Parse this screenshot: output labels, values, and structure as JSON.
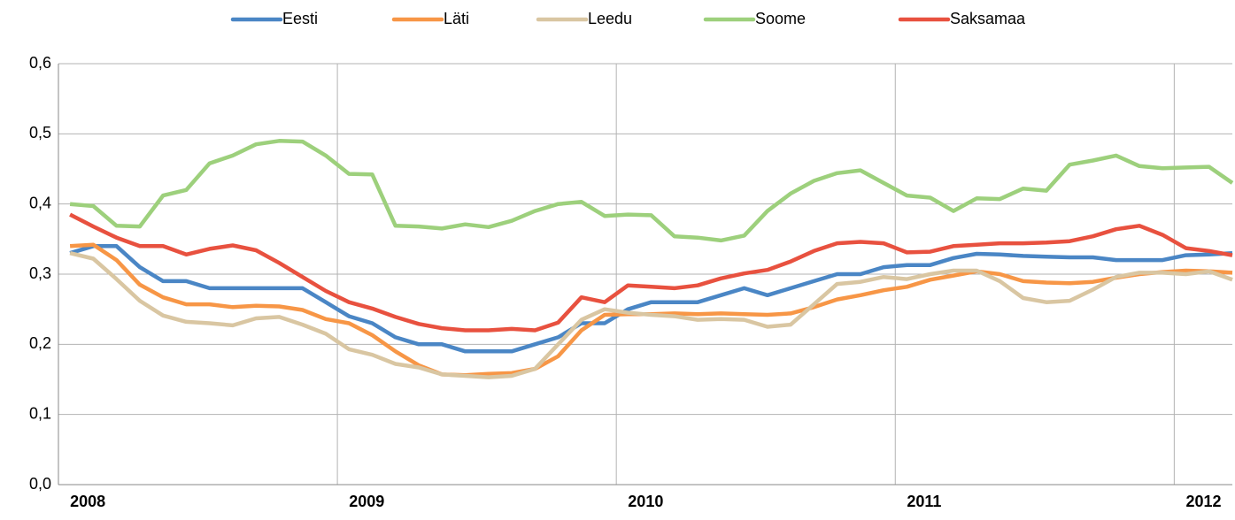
{
  "chart_data": {
    "type": "line",
    "categories": [
      "2008",
      null,
      null,
      null,
      null,
      null,
      null,
      null,
      null,
      null,
      null,
      null,
      "2009",
      null,
      null,
      null,
      null,
      null,
      null,
      null,
      null,
      null,
      null,
      null,
      "2010",
      null,
      null,
      null,
      null,
      null,
      null,
      null,
      null,
      null,
      null,
      null,
      "2011",
      null,
      null,
      null,
      null,
      null,
      null,
      null,
      null,
      null,
      null,
      null,
      "2012",
      null,
      null
    ],
    "series": [
      {
        "name": "Eesti",
        "color": "#4a86c5",
        "values": [
          0.33,
          0.34,
          0.34,
          0.31,
          0.29,
          0.29,
          0.28,
          0.28,
          0.28,
          0.28,
          0.28,
          0.26,
          0.24,
          0.23,
          0.21,
          0.2,
          0.2,
          0.19,
          0.19,
          0.19,
          0.2,
          0.21,
          0.23,
          0.23,
          0.25,
          0.26,
          0.26,
          0.26,
          0.27,
          0.28,
          0.27,
          0.28,
          0.29,
          0.3,
          0.3,
          0.31,
          0.313,
          0.313,
          0.323,
          0.329,
          0.328,
          0.326,
          0.325,
          0.324,
          0.324,
          0.32,
          0.32,
          0.32,
          0.327,
          0.328,
          0.33
        ]
      },
      {
        "name": "Läti",
        "color": "#f79646",
        "values": [
          0.34,
          0.342,
          0.32,
          0.285,
          0.267,
          0.257,
          0.257,
          0.253,
          0.255,
          0.254,
          0.249,
          0.236,
          0.23,
          0.213,
          0.19,
          0.17,
          0.157,
          0.156,
          0.158,
          0.159,
          0.165,
          0.183,
          0.22,
          0.242,
          0.243,
          0.243,
          0.244,
          0.243,
          0.244,
          0.243,
          0.242,
          0.244,
          0.253,
          0.264,
          0.27,
          0.277,
          0.282,
          0.292,
          0.298,
          0.304,
          0.3,
          0.29,
          0.288,
          0.287,
          0.289,
          0.295,
          0.3,
          0.303,
          0.305,
          0.304,
          0.302
        ]
      },
      {
        "name": "Leedu",
        "color": "#d9c6a2",
        "values": [
          0.33,
          0.322,
          0.293,
          0.262,
          0.241,
          0.232,
          0.23,
          0.227,
          0.237,
          0.239,
          0.228,
          0.215,
          0.193,
          0.185,
          0.172,
          0.167,
          0.157,
          0.155,
          0.153,
          0.155,
          0.165,
          0.2,
          0.235,
          0.25,
          0.245,
          0.242,
          0.24,
          0.235,
          0.236,
          0.235,
          0.225,
          0.228,
          0.257,
          0.286,
          0.289,
          0.296,
          0.293,
          0.3,
          0.305,
          0.305,
          0.29,
          0.266,
          0.26,
          0.262,
          0.278,
          0.296,
          0.302,
          0.302,
          0.3,
          0.304,
          0.292
        ]
      },
      {
        "name": "Soome",
        "color": "#9dd07c",
        "values": [
          0.4,
          0.397,
          0.369,
          0.368,
          0.412,
          0.42,
          0.458,
          0.469,
          0.485,
          0.49,
          0.489,
          0.469,
          0.443,
          0.442,
          0.369,
          0.368,
          0.365,
          0.371,
          0.367,
          0.376,
          0.39,
          0.4,
          0.403,
          0.383,
          0.385,
          0.384,
          0.354,
          0.352,
          0.348,
          0.355,
          0.39,
          0.415,
          0.433,
          0.444,
          0.448,
          0.43,
          0.412,
          0.409,
          0.39,
          0.408,
          0.407,
          0.422,
          0.419,
          0.456,
          0.462,
          0.469,
          0.454,
          0.451,
          0.452,
          0.453,
          0.43
        ]
      },
      {
        "name": "Saksamaa",
        "color": "#e8513f",
        "values": [
          0.385,
          0.368,
          0.352,
          0.34,
          0.34,
          0.328,
          0.336,
          0.341,
          0.334,
          0.316,
          0.296,
          0.276,
          0.26,
          0.251,
          0.239,
          0.229,
          0.223,
          0.22,
          0.22,
          0.222,
          0.22,
          0.231,
          0.267,
          0.26,
          0.284,
          0.282,
          0.28,
          0.284,
          0.294,
          0.301,
          0.306,
          0.318,
          0.333,
          0.344,
          0.346,
          0.344,
          0.331,
          0.332,
          0.34,
          0.342,
          0.344,
          0.344,
          0.345,
          0.347,
          0.354,
          0.364,
          0.369,
          0.356,
          0.337,
          0.333,
          0.327
        ]
      }
    ],
    "ylim": [
      0,
      0.6
    ],
    "yticks": [
      {
        "value": 0,
        "label": "0,0"
      },
      {
        "value": 0.1,
        "label": "0,1"
      },
      {
        "value": 0.2,
        "label": "0,2"
      },
      {
        "value": 0.3,
        "label": "0,3"
      },
      {
        "value": 0.4,
        "label": "0,4"
      },
      {
        "value": 0.5,
        "label": "0,5"
      },
      {
        "value": 0.6,
        "label": "0,6"
      }
    ],
    "grid": true,
    "legend": "top"
  }
}
